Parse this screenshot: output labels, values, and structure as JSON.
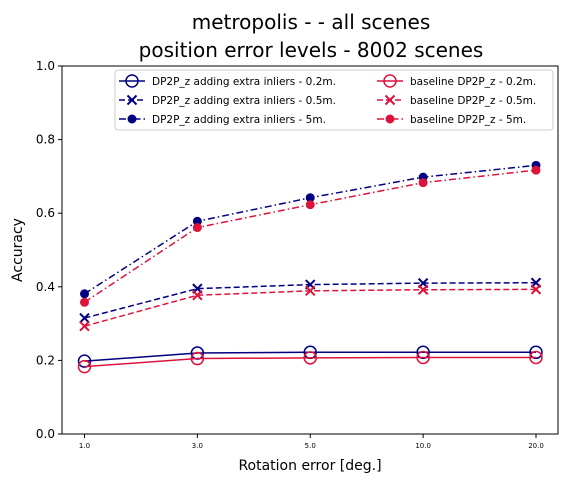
{
  "chart_data": {
    "type": "line",
    "title_line1": "metropolis -  - all scenes",
    "title_line2": "position error levels - 8002 scenes",
    "xlabel": "Rotation error [deg.]",
    "ylabel": "Accuracy",
    "categories": [
      "1.0",
      "3.0",
      "5.0",
      "10.0",
      "20.0"
    ],
    "ylim": [
      0.0,
      1.0
    ],
    "yticks": [
      "0.0",
      "0.2",
      "0.4",
      "0.6",
      "0.8",
      "1.0"
    ],
    "legend_placement": "upper-right, two columns",
    "series": [
      {
        "name": "DP2P_z adding extra inliers - 0.2m.",
        "color": "#000080",
        "linestyle": "solid",
        "marker": "open-circle",
        "values": [
          0.198,
          0.22,
          0.222,
          0.222,
          0.222
        ]
      },
      {
        "name": "DP2P_z adding extra inliers - 0.5m.",
        "color": "#000080",
        "linestyle": "dashed",
        "marker": "x",
        "values": [
          0.315,
          0.395,
          0.406,
          0.41,
          0.411
        ]
      },
      {
        "name": "DP2P_z adding extra inliers - 5m.",
        "color": "#000080",
        "linestyle": "dashdot",
        "marker": "filled-circle",
        "values": [
          0.381,
          0.578,
          0.642,
          0.698,
          0.73
        ]
      },
      {
        "name": "baseline DP2P_z - 0.2m.",
        "color": "#dc143c",
        "linestyle": "solid",
        "marker": "open-circle",
        "values": [
          0.183,
          0.205,
          0.207,
          0.208,
          0.208
        ]
      },
      {
        "name": "baseline DP2P_z - 0.5m.",
        "color": "#dc143c",
        "linestyle": "dashed",
        "marker": "x",
        "values": [
          0.293,
          0.377,
          0.389,
          0.392,
          0.393
        ]
      },
      {
        "name": "baseline DP2P_z - 5m.",
        "color": "#dc143c",
        "linestyle": "dashdot",
        "marker": "filled-circle",
        "values": [
          0.358,
          0.561,
          0.623,
          0.683,
          0.717
        ]
      }
    ]
  }
}
